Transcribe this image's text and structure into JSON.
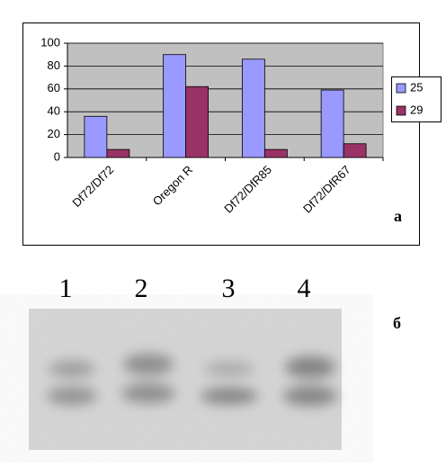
{
  "chart_data": {
    "type": "bar",
    "categories": [
      "Df72/Df72",
      "Oregon R",
      "Df72/DfR85",
      "Df72/DfR67"
    ],
    "series": [
      {
        "name": "25",
        "color": "#9999ff",
        "values": [
          36,
          90,
          86,
          59
        ]
      },
      {
        "name": "29",
        "color": "#993366",
        "values": [
          7,
          62,
          7,
          12
        ]
      }
    ],
    "ylim": [
      0,
      100
    ],
    "yticks": [
      0,
      20,
      40,
      60,
      80,
      100
    ],
    "grid": true,
    "legend": "right",
    "plot_background": "#c0c0c0"
  },
  "panel_labels": [
    "а",
    "б"
  ],
  "gel": {
    "lanes": [
      "1",
      "2",
      "3",
      "4"
    ]
  }
}
